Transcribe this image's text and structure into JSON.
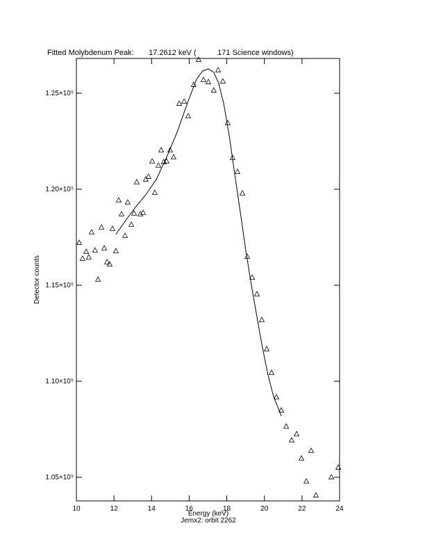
{
  "chart_data": {
    "type": "scatter",
    "title": "Fitted Molybdenum Peak:       17.2612 keV (          171 Science windows)",
    "x_label": "Energy (keV)",
    "y_label": "Detector counts",
    "footnote": "Jemx2: orbit 2262",
    "xlim": [
      10,
      24
    ],
    "xticks": [
      10,
      12,
      14,
      16,
      18,
      20,
      22,
      24
    ],
    "ylim": [
      103770,
      126810
    ],
    "yticks": [
      {
        "value": 105000,
        "label": "1.05×10⁵"
      },
      {
        "value": 110000,
        "label": "1.10×10⁵"
      },
      {
        "value": 115000,
        "label": "1.15×10⁵"
      },
      {
        "value": 120000,
        "label": "1.20×10⁵"
      },
      {
        "value": 125000,
        "label": "1.25×10⁵"
      }
    ],
    "color": "#000000",
    "series": [
      {
        "type": "scatter",
        "marker": "triangle",
        "x": [
          10.15,
          10.33,
          10.52,
          10.66,
          10.81,
          10.99,
          11.15,
          11.33,
          11.48,
          11.63,
          11.77,
          11.92,
          12.1,
          12.25,
          12.4,
          12.59,
          12.73,
          12.92,
          13.07,
          13.21,
          13.4,
          13.55,
          13.69,
          13.84,
          14.03,
          14.17,
          14.36,
          14.51,
          14.65,
          14.8,
          14.99,
          15.17,
          15.47,
          15.73,
          15.95,
          16.24,
          16.5,
          16.76,
          17.02,
          17.31,
          17.54,
          17.79,
          18.05,
          18.31,
          18.57,
          18.83,
          19.09,
          19.35,
          19.6,
          19.86,
          20.12,
          20.38,
          20.64,
          20.9,
          21.16,
          21.45,
          21.71,
          21.97,
          22.23,
          22.49,
          22.74,
          23.56,
          23.93
        ],
        "values": [
          117210,
          116377,
          116740,
          116450,
          117754,
          116812,
          115290,
          118008,
          116920,
          116196,
          116087,
          117935,
          116776,
          119420,
          118696,
          117573,
          119312,
          118152,
          118732,
          120363,
          118696,
          118768,
          120508,
          120653,
          121449,
          119819,
          121232,
          122029,
          121413,
          121449,
          122029,
          121667,
          124457,
          124565,
          123804,
          125435,
          126739,
          125688,
          125580,
          125145,
          126196,
          125616,
          123442,
          121630,
          120906,
          119783,
          116486,
          115399,
          114529,
          113189,
          111667,
          110435,
          109167,
          108479,
          107646,
          106921,
          107247,
          105979,
          104783,
          106377,
          104058,
          105000,
          105507
        ]
      },
      {
        "type": "line",
        "x": [
          12.1,
          12.59,
          13.14,
          13.69,
          14.25,
          14.8,
          15.36,
          15.91,
          16.39,
          16.72,
          17.02,
          17.31,
          17.57,
          17.83,
          18.13,
          18.42,
          18.72,
          19.01,
          19.31,
          19.6,
          19.9,
          20.2,
          20.49,
          20.79,
          20.9
        ],
        "values": [
          117645,
          118333,
          119058,
          119710,
          120508,
          121667,
          122971,
          124493,
          125725,
          126159,
          126268,
          126087,
          125507,
          124493,
          122790,
          120797,
          118804,
          116812,
          115000,
          113370,
          111740,
          110290,
          109203,
          108479,
          108189
        ]
      }
    ]
  }
}
